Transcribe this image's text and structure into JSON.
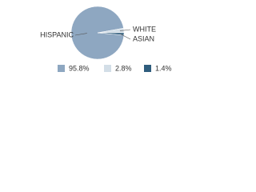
{
  "chart_data": {
    "type": "pie",
    "categories": [
      "HISPANIC",
      "WHITE",
      "ASIAN"
    ],
    "values": [
      95.8,
      2.8,
      1.4
    ],
    "value_labels": [
      "95.8%",
      "2.8%",
      "1.4%"
    ],
    "colors": [
      "#8ea7c1",
      "#d3dee7",
      "#2f5d7d"
    ]
  }
}
